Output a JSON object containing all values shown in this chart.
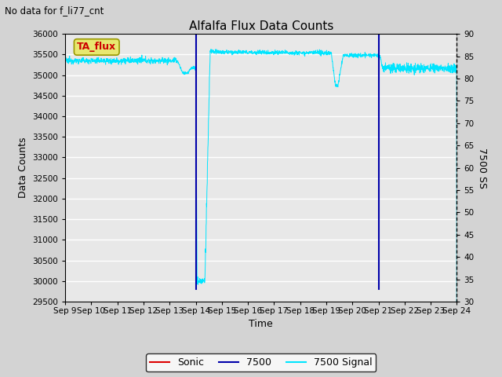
{
  "title": "Alfalfa Flux Data Counts",
  "subtitle": "No data for f_li77_cnt",
  "xlabel": "Time",
  "ylabel_left": "Data Counts",
  "ylabel_right": "7500 SS",
  "xlim": [
    0,
    15
  ],
  "ylim_left": [
    29500,
    36000
  ],
  "ylim_right": [
    30,
    90
  ],
  "yticks_left": [
    29500,
    30000,
    30500,
    31000,
    31500,
    32000,
    32500,
    33000,
    33500,
    34000,
    34500,
    35000,
    35500,
    36000
  ],
  "yticks_right": [
    30,
    35,
    40,
    45,
    50,
    55,
    60,
    65,
    70,
    75,
    80,
    85,
    90
  ],
  "xtick_labels": [
    "Sep 9",
    "Sep 10",
    "Sep 11",
    "Sep 12",
    "Sep 13",
    "Sep 14",
    "Sep 15",
    "Sep 16",
    "Sep 17",
    "Sep 18",
    "Sep 19",
    "Sep 20",
    "Sep 21",
    "Sep 22",
    "Sep 23",
    "Sep 24"
  ],
  "fig_bg": "#d3d3d3",
  "plot_bg": "#e8e8e8",
  "color_7500": "#0000aa",
  "color_signal": "#00e5ff",
  "color_sonic": "#dd0000",
  "legend_sonic": "Sonic",
  "legend_7500": "7500",
  "legend_signal": "7500 Signal",
  "ann_text": "TA_flux",
  "ann_fg": "#cc0000",
  "ann_bg": "#e8e870",
  "ann_edge": "#999900"
}
